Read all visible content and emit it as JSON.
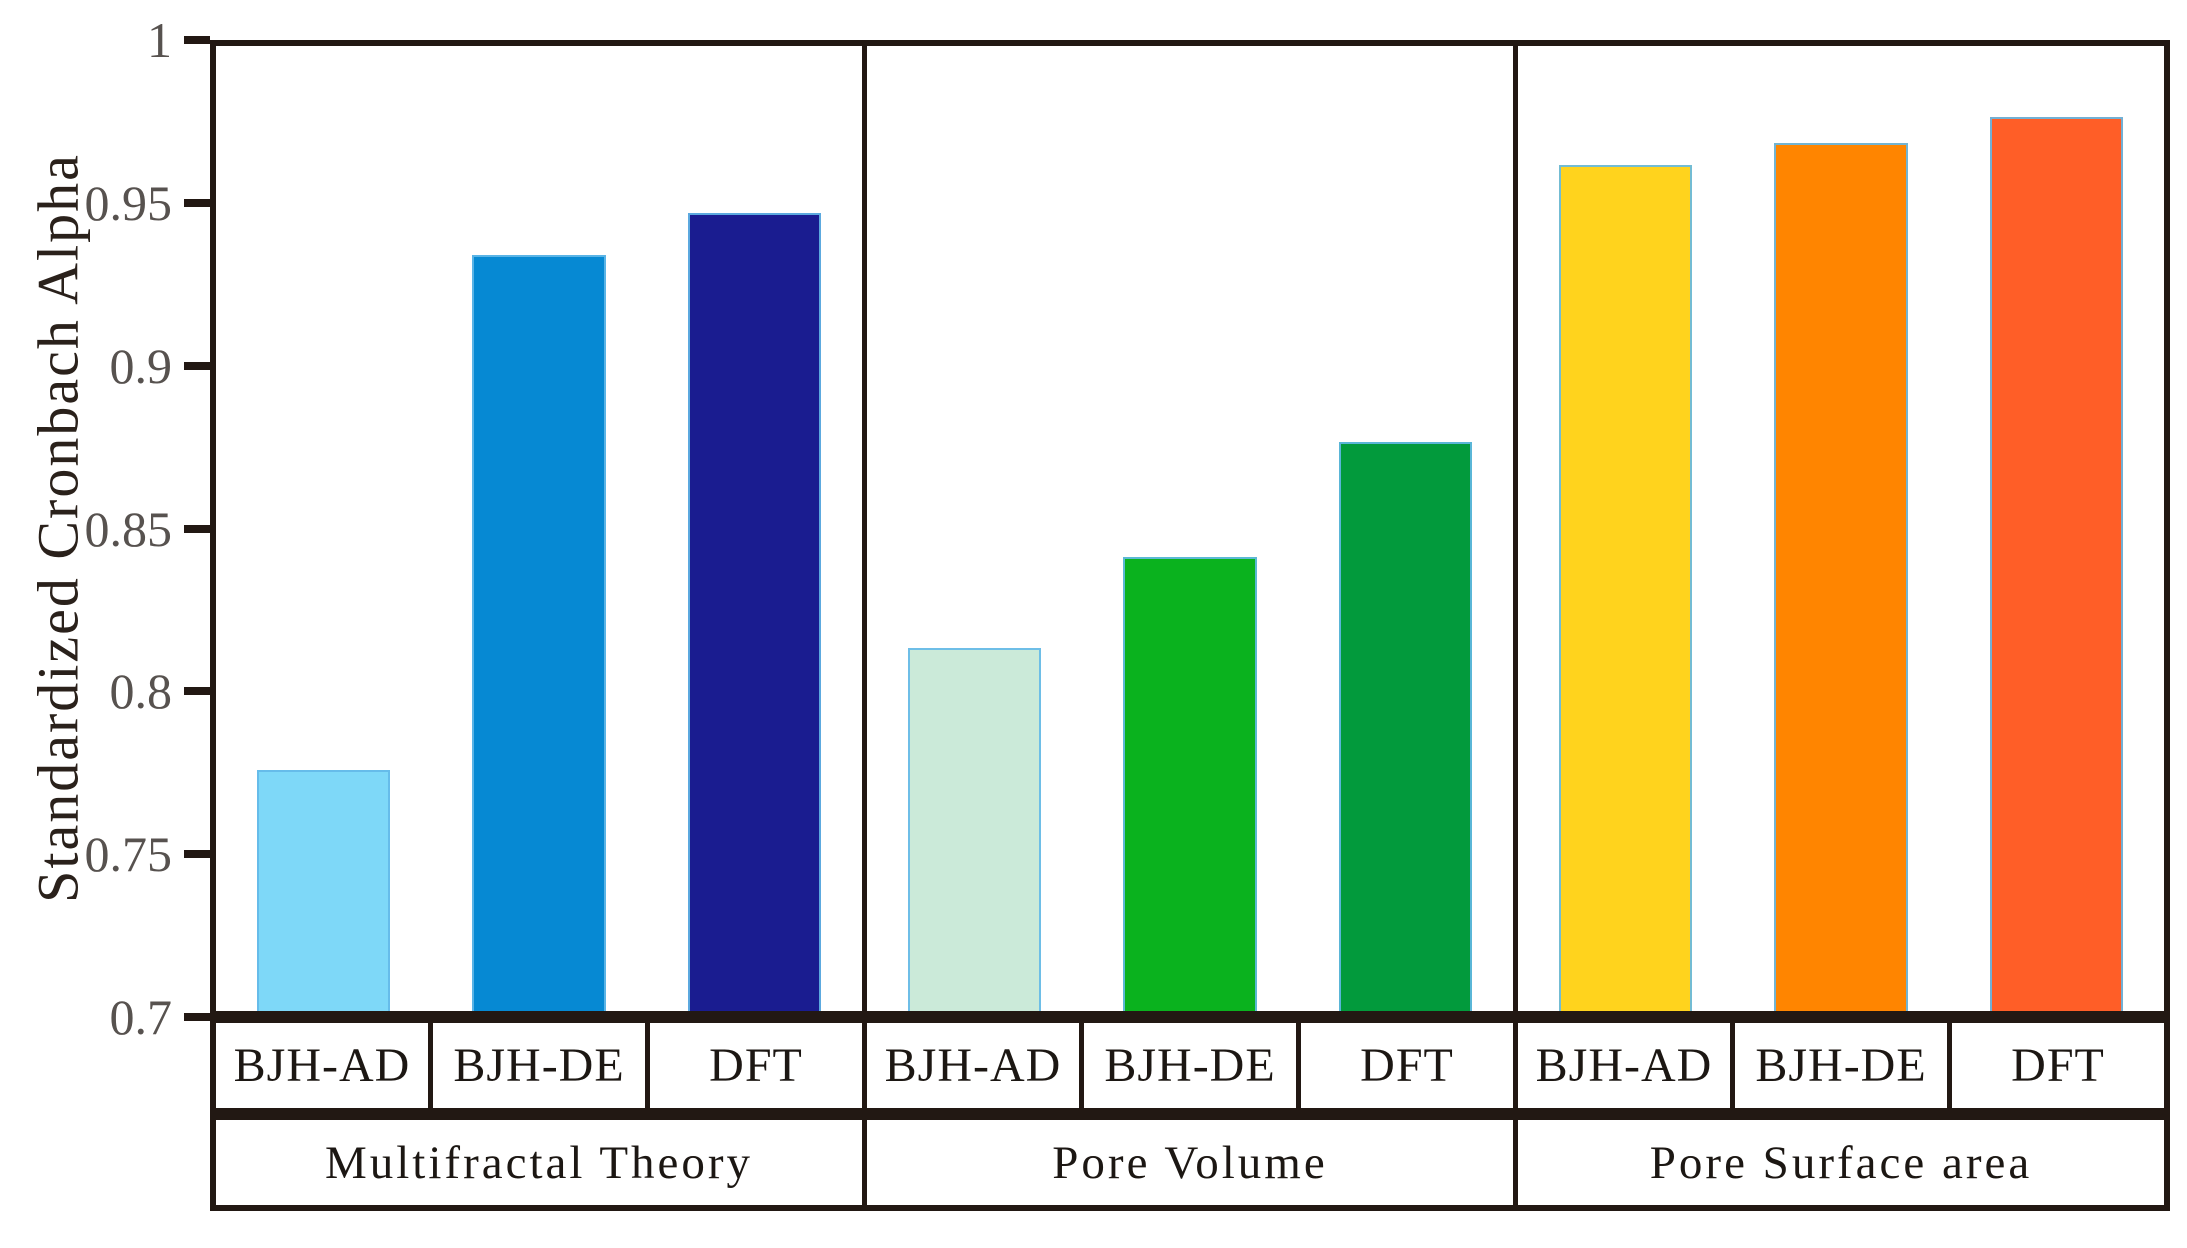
{
  "figure": {
    "background_color": "#ffffff",
    "axis_color": "#221813",
    "tick_label_color": "#57524f",
    "label_text_color": "#1c1713",
    "bar_edge_color": "#64B9E8"
  },
  "chart_data": {
    "type": "bar",
    "title": "",
    "xlabel": "",
    "ylabel": "Standardized Cronbach Alpha",
    "ylim": [
      0.7,
      1.0
    ],
    "grid": false,
    "legend_position": "none",
    "yticks": [
      {
        "value": 1.0,
        "label": "1"
      },
      {
        "value": 0.95,
        "label": "0.95"
      },
      {
        "value": 0.9,
        "label": "0.9"
      },
      {
        "value": 0.85,
        "label": "0.85"
      },
      {
        "value": 0.8,
        "label": "0.8"
      },
      {
        "value": 0.75,
        "label": "0.75"
      },
      {
        "value": 0.7,
        "label": "0.7"
      }
    ],
    "groups": [
      {
        "label": "Multifractal Theory",
        "bars": [
          {
            "method": "BJH-AD",
            "value": 0.775,
            "color": "#7ED8F8"
          },
          {
            "method": "BJH-DE",
            "value": 0.935,
            "color": "#0689D3"
          },
          {
            "method": "DFT",
            "value": 0.948,
            "color": "#1A1C90"
          }
        ]
      },
      {
        "label": "Pore Volume",
        "bars": [
          {
            "method": "BJH-AD",
            "value": 0.813,
            "color": "#CBEAD9"
          },
          {
            "method": "BJH-DE",
            "value": 0.841,
            "color": "#0AB21E"
          },
          {
            "method": "DFT",
            "value": 0.877,
            "color": "#029A3C"
          }
        ]
      },
      {
        "label": "Pore Surface area",
        "bars": [
          {
            "method": "BJH-AD",
            "value": 0.963,
            "color": "#FFD31D"
          },
          {
            "method": "BJH-DE",
            "value": 0.97,
            "color": "#FF8500"
          },
          {
            "method": "DFT",
            "value": 0.978,
            "color": "#FF5E27"
          }
        ]
      }
    ]
  }
}
